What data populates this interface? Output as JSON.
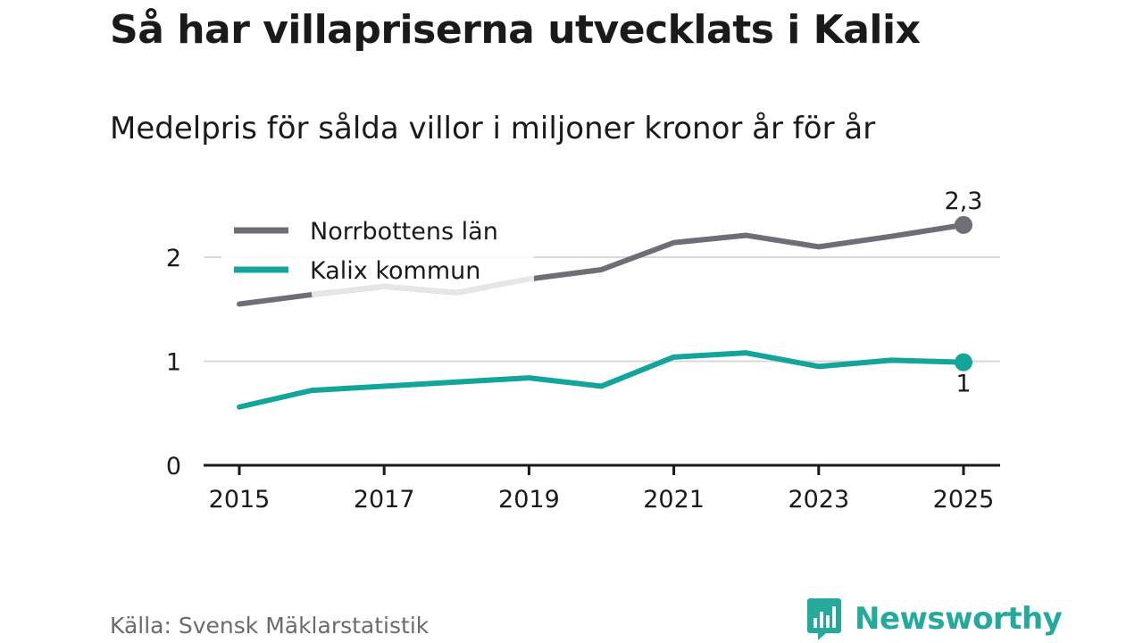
{
  "title": "Så har villapriserna utvecklats i Kalix",
  "subtitle": "Medelpris för sålda villor i miljoner kronor år för år",
  "source": "Källa: Svensk Mäklarstatistik",
  "brand": "Newsworthy",
  "colors": {
    "norrbotten": "#6f6e76",
    "kalix": "#13a599",
    "grid": "#d9d9d9",
    "axis": "#1a1a1a",
    "legend_mask": "#e6e6e6"
  },
  "chart_data": {
    "type": "line",
    "title": "Så har villapriserna utvecklats i Kalix",
    "subtitle": "Medelpris för sålda villor i miljoner kronor år för år",
    "x": [
      2015,
      2016,
      2017,
      2018,
      2019,
      2020,
      2021,
      2022,
      2023,
      2024,
      2025
    ],
    "x_ticks": [
      2015,
      2017,
      2019,
      2021,
      2023,
      2025
    ],
    "x_tick_labels": [
      "2015",
      "2017",
      "2019",
      "2021",
      "2023",
      "2025"
    ],
    "y_ticks": [
      0,
      1,
      2
    ],
    "y_tick_labels": [
      "0",
      "1",
      "2"
    ],
    "ylim": [
      0,
      2.3
    ],
    "grid": true,
    "legend_position": "top-left",
    "series": [
      {
        "name": "Norrbottens län",
        "color_key": "norrbotten",
        "values": [
          1.55,
          1.64,
          1.72,
          1.66,
          1.79,
          1.88,
          2.14,
          2.21,
          2.1,
          2.2,
          2.31
        ],
        "end_label": "2,3",
        "end_label_position": "above"
      },
      {
        "name": "Kalix kommun",
        "color_key": "kalix",
        "values": [
          0.56,
          0.72,
          0.76,
          0.8,
          0.84,
          0.76,
          1.04,
          1.08,
          0.95,
          1.01,
          0.99
        ],
        "end_label": "1",
        "end_label_position": "below"
      }
    ]
  }
}
